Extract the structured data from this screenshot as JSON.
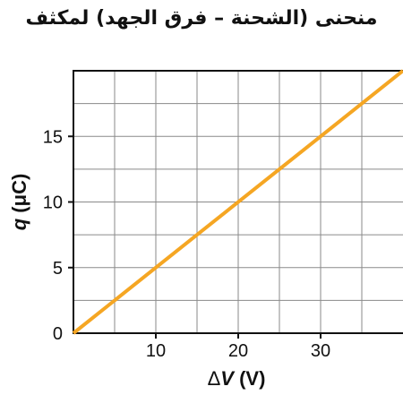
{
  "chart_data": {
    "type": "line",
    "title": "منحنى (الشحنة – فرق الجهد) لمكثف",
    "xlabel_symbol": "Δ",
    "xlabel_var": "V",
    "xlabel_unit": " (V)",
    "ylabel_var": "q",
    "ylabel_unit": " (μC)",
    "xlim": [
      0,
      40
    ],
    "ylim": [
      0,
      20
    ],
    "x_ticks": [
      10,
      20,
      30
    ],
    "y_ticks": [
      0,
      5,
      10,
      15
    ],
    "grid": true,
    "series": [
      {
        "x": [
          0,
          40
        ],
        "y": [
          0,
          20
        ],
        "color": "#f5a623"
      }
    ]
  }
}
